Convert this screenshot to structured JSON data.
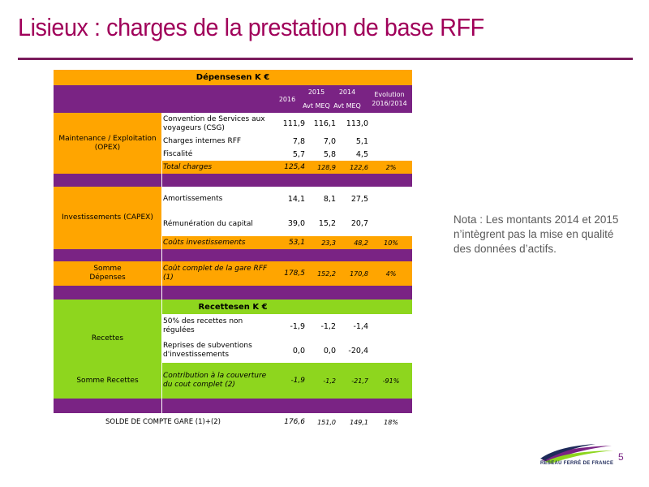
{
  "page": {
    "title": "Lisieux : charges de la prestation de base RFF",
    "note": "Nota : Les montants 2014 et 2015 n’intègrent pas la mise en qualité des données d’actifs.",
    "page_number": "5",
    "logo_text": "RÉSEAU FERRÉ DE FRANCE"
  },
  "colors": {
    "title": "#a0005a",
    "orange": "#ffa500",
    "purple": "#7a2384",
    "green": "#8ed61e"
  },
  "table": {
    "depenses_header": "Dépensesen K €",
    "col_2016": "2016",
    "col_2015": "2015",
    "col_2015_sub": "Avt MEQ",
    "col_2014": "2014",
    "col_2014_sub": "Avt MEQ",
    "col_evol": "Evolution 2016/2014",
    "opex": {
      "label": "Maintenance / Exploitation (OPEX)",
      "rows": [
        {
          "label": "Convention de Services aux voyageurs (CSG)",
          "v2016": "111,9",
          "v2015": "116,1",
          "v2014": "113,0",
          "evol": ""
        },
        {
          "label": "Charges internes RFF",
          "v2016": "7,8",
          "v2015": "7,0",
          "v2014": "5,1",
          "evol": ""
        },
        {
          "label": "Fiscalité",
          "v2016": "5,7",
          "v2015": "5,8",
          "v2014": "4,5",
          "evol": ""
        }
      ],
      "total": {
        "label": "Total charges",
        "v2016": "125,4",
        "v2015": "128,9",
        "v2014": "122,6",
        "evol": "2%"
      }
    },
    "capex": {
      "label": "Investissements (CAPEX)",
      "rows": [
        {
          "label": "Amortissements",
          "v2016": "14,1",
          "v2015": "8,1",
          "v2014": "27,5",
          "evol": ""
        },
        {
          "label": "Rémunération du capital",
          "v2016": "39,0",
          "v2015": "15,2",
          "v2014": "20,7",
          "evol": ""
        }
      ],
      "total": {
        "label": "Coûts investissements",
        "v2016": "53,1",
        "v2015": "23,3",
        "v2014": "48,2",
        "evol": "10%"
      }
    },
    "somme_depenses": {
      "label": "Somme Dépenses",
      "desc": "Coût complet de la gare RFF (1)",
      "v2016": "178,5",
      "v2015": "152,2",
      "v2014": "170,8",
      "evol": "4%"
    },
    "recettes_header": "Recettesen K €",
    "recettes": {
      "label": "Recettes",
      "rows": [
        {
          "label": "50% des recettes non régulées",
          "v2016": "-1,9",
          "v2015": "-1,2",
          "v2014": "-1,4",
          "evol": ""
        },
        {
          "label": "Reprises de subventions d'investissements",
          "v2016": "0,0",
          "v2015": "0,0",
          "v2014": "-20,4",
          "evol": ""
        }
      ]
    },
    "somme_recettes": {
      "label": "Somme Recettes",
      "desc": "Contribution à la couverture du cout complet (2)",
      "v2016": "-1,9",
      "v2015": "-1,2",
      "v2014": "-21,7",
      "evol": "-91%"
    },
    "solde": {
      "label": "SOLDE DE COMPTE GARE (1)+(2)",
      "v2016": "176,6",
      "v2015": "151,0",
      "v2014": "149,1",
      "evol": "18%"
    }
  }
}
